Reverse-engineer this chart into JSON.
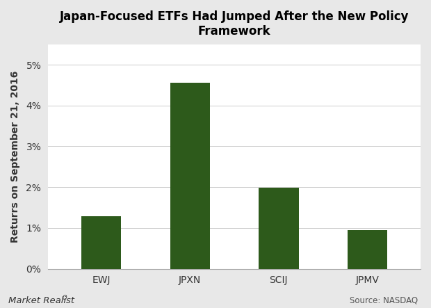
{
  "title": "Japan-Focused ETFs Had Jumped After the New Policy\nFramework",
  "categories": [
    "EWJ",
    "JPXN",
    "SCIJ",
    "JPMV"
  ],
  "values": [
    1.28,
    4.56,
    1.98,
    0.95
  ],
  "bar_color": "#2d5a1b",
  "ylabel": "Returrs on September 21, 2016",
  "ylim": [
    0,
    0.055
  ],
  "yticks": [
    0.0,
    0.01,
    0.02,
    0.03,
    0.04,
    0.05
  ],
  "ytick_labels": [
    "0%",
    "1%",
    "2%",
    "3%",
    "4%",
    "5%"
  ],
  "title_fontsize": 12,
  "ylabel_fontsize": 10,
  "tick_fontsize": 10,
  "source_text": "Source: NASDAQ",
  "watermark_text": "Market Realist",
  "plot_bg_color": "#ffffff",
  "fig_bg_color": "#e8e8e8",
  "bar_width": 0.45
}
